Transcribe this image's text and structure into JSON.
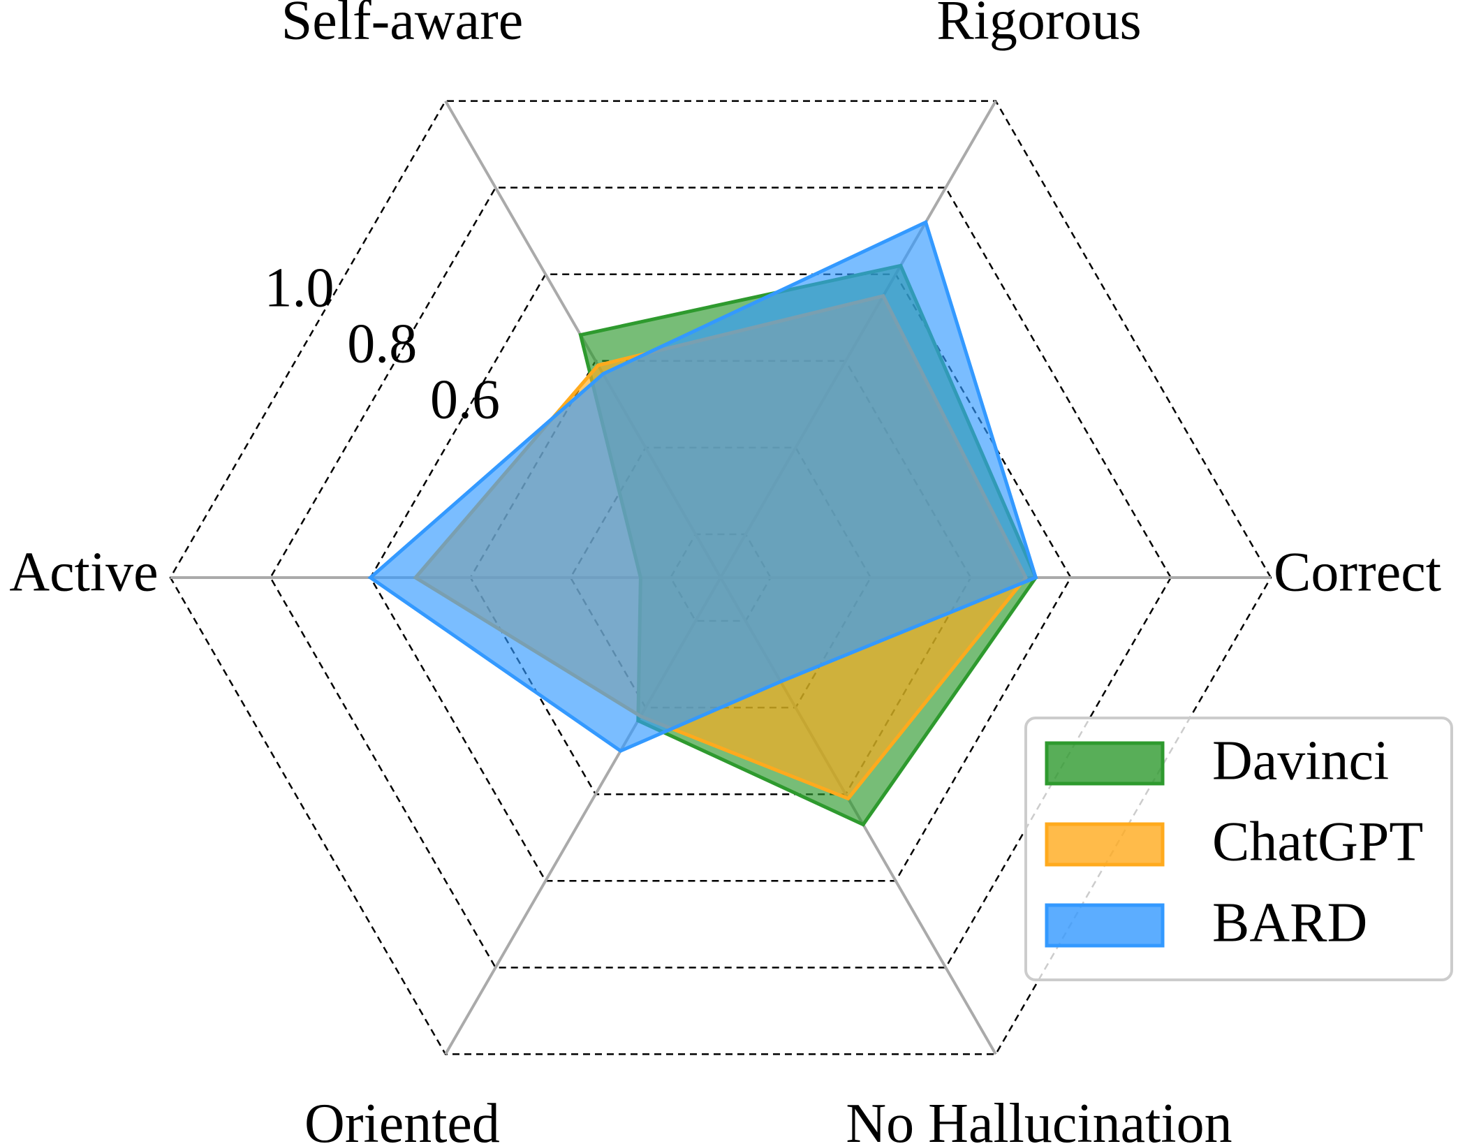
{
  "chart_data": {
    "type": "radar",
    "categories": [
      "Correct",
      "Rigorous",
      "Self-aware",
      "Active",
      "Oriented",
      "No Hallucination"
    ],
    "series": [
      {
        "name": "Davinci",
        "color": "#2e9a2e",
        "values": [
          0.53,
          0.62,
          0.46,
          0.06,
          0.23,
          0.47
        ]
      },
      {
        "name": "ChatGPT",
        "color": "#ffaa1d",
        "values": [
          0.51,
          0.55,
          0.39,
          0.51,
          0.22,
          0.41
        ]
      },
      {
        "name": "BARD",
        "color": "#3399ff",
        "values": [
          0.53,
          0.72,
          0.37,
          0.6,
          0.3,
          0.14
        ]
      }
    ],
    "ylim": [
      -0.1,
      1.0
    ],
    "yticks": [
      {
        "value": 0,
        "label": null
      },
      {
        "value": 0.2,
        "label": null
      },
      {
        "value": 0.4,
        "label": null
      },
      0.6,
      0.8,
      {
        "value": 1,
        "label": "1.0"
      }
    ],
    "grid": true,
    "legend": "lower right"
  }
}
